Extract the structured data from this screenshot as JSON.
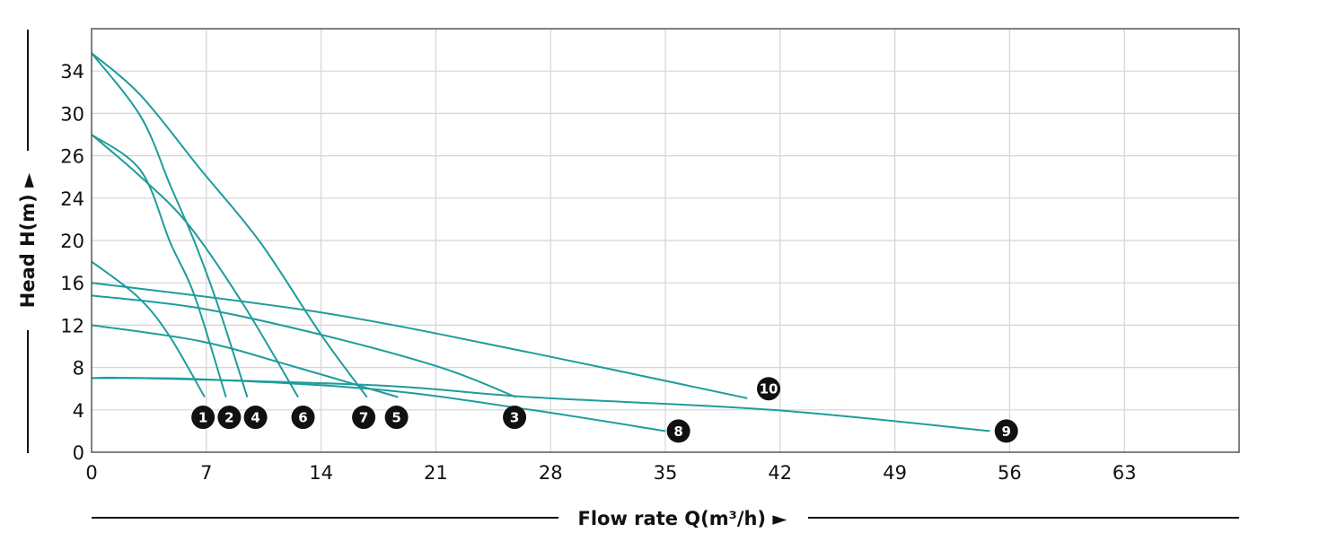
{
  "chart_data": {
    "type": "line",
    "title": "",
    "xlabel": "Flow rate Q(m³/h) ►",
    "ylabel": "Head H(m) ►",
    "xlim": [
      0,
      70
    ],
    "x_ticks": [
      0,
      7,
      14,
      21,
      28,
      35,
      42,
      49,
      56,
      63
    ],
    "y_ticks": [
      0,
      4,
      8,
      12,
      16,
      20,
      24,
      26,
      30,
      34
    ],
    "y_scale_note_extra_top": 38,
    "grid": true,
    "line_color": "#1f9c9c",
    "series": [
      {
        "name": "1",
        "points": [
          [
            0,
            18
          ],
          [
            2.8,
            14.7
          ],
          [
            4.7,
            11.1
          ],
          [
            6.9,
            5.2
          ]
        ],
        "label_at": [
          6.8,
          3.3
        ]
      },
      {
        "name": "2",
        "points": [
          [
            0,
            28
          ],
          [
            3,
            25.3
          ],
          [
            4.8,
            19.8
          ],
          [
            6.3,
            14.7
          ],
          [
            8.2,
            5.2
          ]
        ],
        "label_at": [
          8.4,
          3.3
        ]
      },
      {
        "name": "3",
        "points": [
          [
            0,
            14.8
          ],
          [
            6.6,
            13.6
          ],
          [
            14,
            11.1
          ],
          [
            21.3,
            8
          ],
          [
            25.9,
            5.2
          ]
        ],
        "label_at": [
          25.8,
          3.3
        ]
      },
      {
        "name": "4",
        "points": [
          [
            0,
            35.7
          ],
          [
            3,
            29.7
          ],
          [
            4.8,
            24.6
          ],
          [
            6.3,
            19.8
          ],
          [
            7.7,
            13.9
          ],
          [
            9.5,
            5.2
          ]
        ],
        "label_at": [
          10,
          3.3
        ]
      },
      {
        "name": "5",
        "points": [
          [
            0,
            12
          ],
          [
            6.6,
            10.5
          ],
          [
            12.1,
            8.2
          ],
          [
            18.7,
            5.2
          ]
        ],
        "label_at": [
          18.6,
          3.3
        ]
      },
      {
        "name": "6",
        "points": [
          [
            0,
            28
          ],
          [
            3,
            25
          ],
          [
            5.9,
            21.5
          ],
          [
            9.2,
            14.1
          ],
          [
            12.6,
            5.2
          ]
        ],
        "label_at": [
          12.9,
          3.3
        ]
      },
      {
        "name": "7",
        "points": [
          [
            0,
            35.7
          ],
          [
            3,
            31.7
          ],
          [
            6.6,
            25.4
          ],
          [
            10.3,
            19.8
          ],
          [
            14,
            11.1
          ],
          [
            16.8,
            5.2
          ]
        ],
        "label_at": [
          16.6,
          3.3
        ]
      },
      {
        "name": "8",
        "points": [
          [
            0,
            7
          ],
          [
            6.6,
            6.9
          ],
          [
            17.6,
            5.9
          ],
          [
            26.8,
            4
          ],
          [
            35,
            2
          ]
        ],
        "label_at": [
          35.8,
          2
        ]
      },
      {
        "name": "9",
        "points": [
          [
            0,
            7
          ],
          [
            3,
            7
          ],
          [
            17.6,
            6.3
          ],
          [
            26.8,
            5.2
          ],
          [
            41.5,
            4
          ],
          [
            54.8,
            2
          ]
        ],
        "label_at": [
          55.8,
          2
        ]
      },
      {
        "name": "10",
        "points": [
          [
            0,
            16
          ],
          [
            14,
            13.2
          ],
          [
            26.8,
            9.4
          ],
          [
            40,
            5.1
          ]
        ],
        "label_at": [
          41.3,
          6
        ]
      }
    ]
  }
}
